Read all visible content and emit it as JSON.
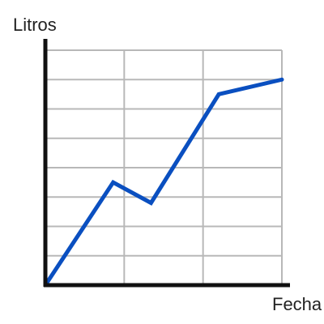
{
  "chart_data": {
    "type": "line",
    "xlabel": "Fecha",
    "ylabel": "Litros",
    "xlim": [
      0,
      3
    ],
    "ylim": [
      0,
      8
    ],
    "grid": true,
    "x": [
      0,
      0.86,
      1.34,
      2.2,
      3.0
    ],
    "series": [
      {
        "values": [
          0,
          3.5,
          2.8,
          6.5,
          7.0
        ]
      }
    ],
    "colors": {
      "line": "#0a4fc0",
      "grid": "#b8b8b8",
      "axis": "#111111"
    }
  }
}
